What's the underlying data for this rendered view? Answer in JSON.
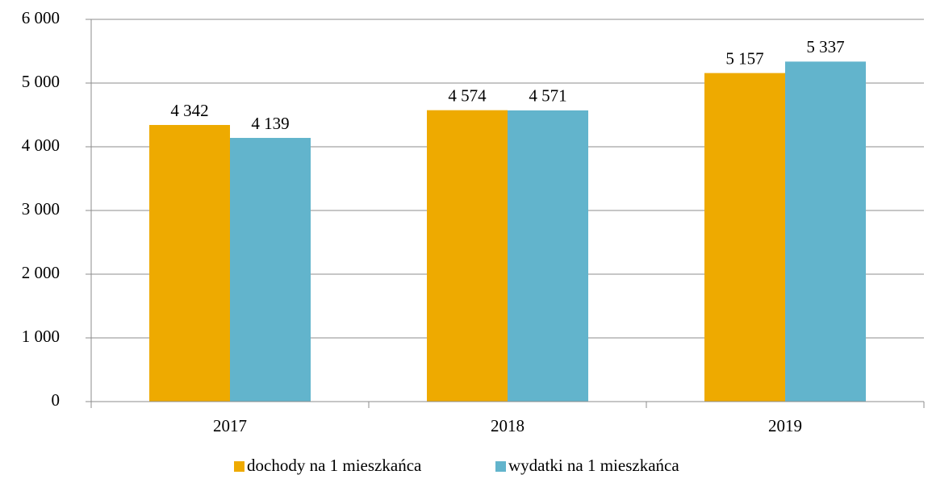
{
  "chart_data": {
    "type": "bar",
    "categories": [
      "2017",
      "2018",
      "2019"
    ],
    "series": [
      {
        "name": "dochody na 1 mieszkańca",
        "color": "#eeaa00",
        "values": [
          4342,
          4574,
          5157
        ],
        "value_labels": [
          "4 342",
          "4 574",
          "5 157"
        ]
      },
      {
        "name": "wydatki na 1 mieszkańca",
        "color": "#62b4cc",
        "values": [
          4139,
          4571,
          5337
        ],
        "value_labels": [
          "4 139",
          "4 571",
          "5 337"
        ]
      }
    ],
    "ylim": [
      0,
      6000
    ],
    "yticks": [
      {
        "value": 0,
        "label": "0"
      },
      {
        "value": 1000,
        "label": "1 000"
      },
      {
        "value": 2000,
        "label": "2 000"
      },
      {
        "value": 3000,
        "label": "3 000"
      },
      {
        "value": 4000,
        "label": "4 000"
      },
      {
        "value": 5000,
        "label": "5 000"
      },
      {
        "value": 6000,
        "label": "6 000"
      }
    ],
    "grid": true,
    "legend": "bottom"
  }
}
